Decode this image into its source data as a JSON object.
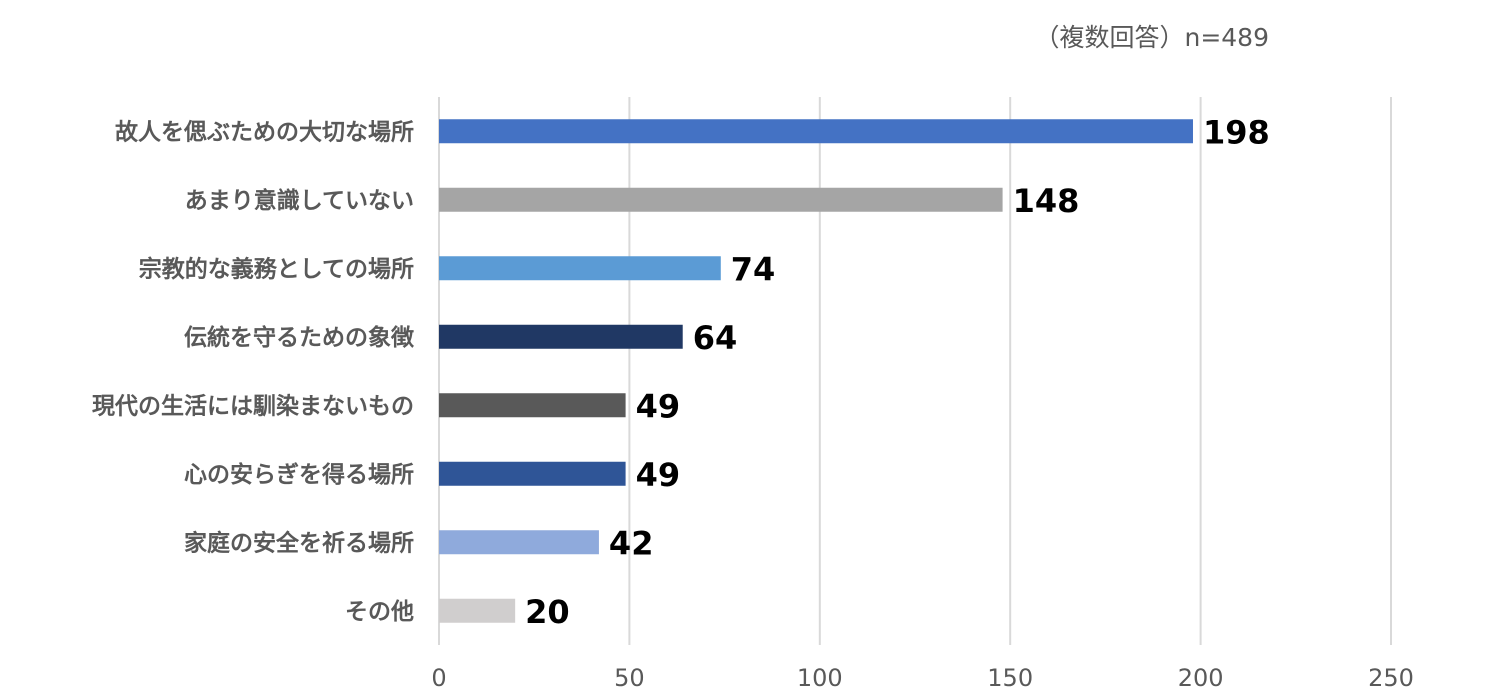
{
  "note": "（複数回答）n=489",
  "chart_data": {
    "type": "bar",
    "orientation": "horizontal",
    "title": "",
    "xlabel": "",
    "ylabel": "",
    "categories": [
      "故人を偲ぶための大切な場所",
      "あまり意識していない",
      "宗教的な義務としての場所",
      "伝統を守るための象徴",
      "現代の生活には馴染まないもの",
      "心の安らぎを得る場所",
      "家庭の安全を祈る場所",
      "その他"
    ],
    "values": [
      198,
      148,
      74,
      64,
      49,
      49,
      42,
      20
    ],
    "colors": [
      "#4472C4",
      "#A5A5A5",
      "#5B9BD5",
      "#203864",
      "#595959",
      "#2F5597",
      "#8FAADC",
      "#D0CECE"
    ],
    "xlim": [
      0,
      250
    ],
    "xticks": [
      0,
      50,
      100,
      150,
      200,
      250
    ],
    "grid": true,
    "data_labels": true,
    "legend": "none"
  }
}
